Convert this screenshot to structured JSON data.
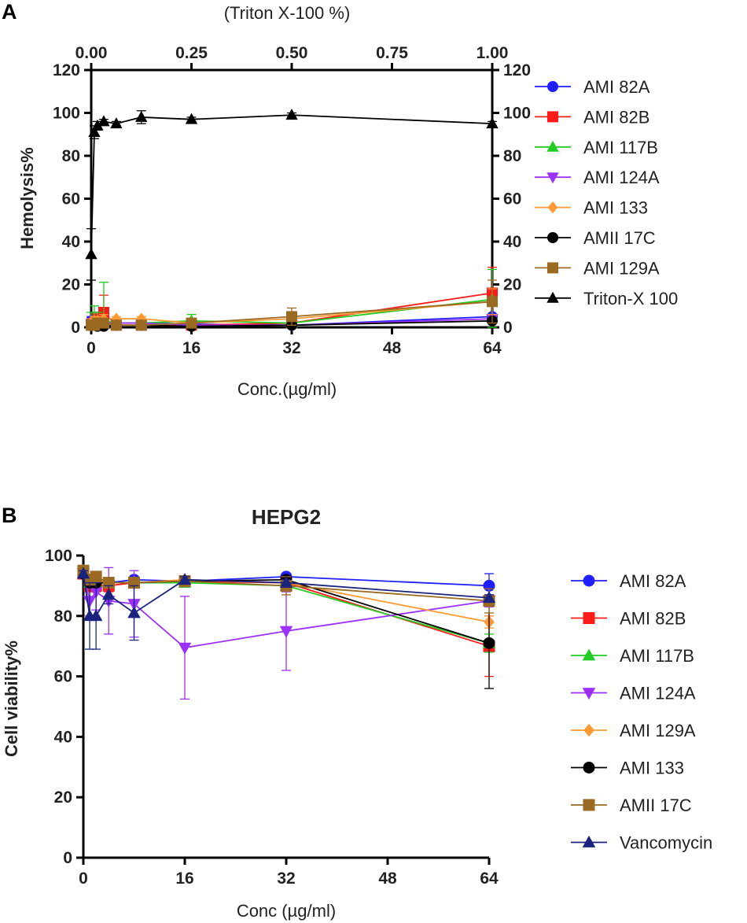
{
  "chart_data": [
    {
      "panel": "A",
      "type": "line",
      "title": "",
      "xlabel": "Conc.(µg/ml)",
      "ylabel": "Hemolysis%",
      "x2label": "(Triton X-100 %)",
      "xlim": [
        0,
        64
      ],
      "ylim": [
        0,
        120
      ],
      "x2lim": [
        0,
        1
      ],
      "xticks": [
        "0",
        "16",
        "32",
        "48",
        "64"
      ],
      "yticks": [
        "0",
        "20",
        "40",
        "60",
        "80",
        "100",
        "120"
      ],
      "x2ticks": [
        "0.00",
        "0.25",
        "0.50",
        "0.75",
        "1.00"
      ],
      "y2ticks": [
        "0",
        "20",
        "40",
        "60",
        "80",
        "100",
        "120"
      ],
      "series": [
        {
          "name": "AMI 82A",
          "color": "#1f1fff",
          "marker": "circle",
          "x": [
            0,
            0.5,
            1,
            2,
            4,
            8,
            16,
            32,
            64
          ],
          "values": [
            3,
            4,
            2,
            2,
            2,
            2,
            1.5,
            1,
            5
          ],
          "err": [
            2,
            3,
            2,
            1,
            1,
            1,
            1,
            1,
            1
          ]
        },
        {
          "name": "AMI 82B",
          "color": "#ff1a1a",
          "marker": "square",
          "x": [
            0,
            0.5,
            1,
            2,
            4,
            8,
            16,
            32,
            64
          ],
          "values": [
            1,
            2,
            4,
            7,
            1,
            1,
            1,
            2,
            16
          ],
          "err": [
            1,
            2,
            3,
            8,
            1,
            1,
            1,
            1,
            12
          ]
        },
        {
          "name": "AMI 117B",
          "color": "#22cc22",
          "marker": "triangle-up",
          "x": [
            0,
            0.5,
            1,
            2,
            4,
            8,
            16,
            32,
            64
          ],
          "values": [
            2,
            3,
            2,
            3,
            2,
            2,
            3,
            2,
            13
          ],
          "err": [
            5,
            7,
            5,
            18,
            2,
            2,
            3,
            1,
            14
          ]
        },
        {
          "name": "AMI 124A",
          "color": "#9b30ff",
          "marker": "triangle-down",
          "x": [
            0,
            0.5,
            1,
            2,
            4,
            8,
            16,
            32,
            64
          ],
          "values": [
            1,
            2,
            1,
            2,
            2,
            2,
            1,
            1,
            4
          ],
          "err": [
            1,
            1,
            1,
            1,
            1,
            1,
            1,
            1,
            2
          ]
        },
        {
          "name": "AMI 133",
          "color": "#ff9933",
          "marker": "diamond",
          "x": [
            0,
            0.5,
            1,
            2,
            4,
            8,
            16,
            32,
            64
          ],
          "values": [
            2,
            3,
            3,
            4,
            4,
            4,
            2,
            4,
            12
          ],
          "err": [
            2,
            2,
            2,
            2,
            1,
            1,
            1,
            2,
            6
          ]
        },
        {
          "name": "AMII 17C",
          "color": "#000000",
          "marker": "circle",
          "x": [
            0,
            0.5,
            1,
            2,
            4,
            8,
            16,
            32,
            64
          ],
          "values": [
            1,
            1,
            0.5,
            0.5,
            1,
            1,
            0.5,
            1,
            3
          ],
          "err": [
            1,
            1,
            1,
            1,
            1,
            1,
            1,
            1,
            1
          ]
        },
        {
          "name": "AMI 129A",
          "color": "#9a6a22",
          "marker": "square",
          "x": [
            0,
            0.5,
            1,
            2,
            4,
            8,
            16,
            32,
            64
          ],
          "values": [
            1,
            1,
            2,
            2,
            1,
            1,
            2,
            5,
            12
          ],
          "err": [
            1,
            1,
            1,
            1,
            1,
            1,
            1,
            4,
            10
          ]
        },
        {
          "name": "Triton-X 100",
          "color": "#000000",
          "marker": "triangle-up",
          "axis": "top",
          "x2": [
            0,
            0.0078,
            0.0156,
            0.03125,
            0.0625,
            0.125,
            0.25,
            0.5,
            1.0
          ],
          "values": [
            34,
            91,
            94,
            96,
            95,
            98,
            97,
            99,
            95
          ],
          "err": [
            12,
            3,
            2,
            1,
            1,
            3,
            1,
            1,
            1
          ]
        }
      ]
    },
    {
      "panel": "B",
      "type": "line",
      "title": "HEPG2",
      "xlabel": "Conc (µg/ml)",
      "ylabel": "Cell viability%",
      "xlim": [
        0,
        64
      ],
      "ylim": [
        0,
        100
      ],
      "xticks": [
        "0",
        "16",
        "32",
        "48",
        "64"
      ],
      "yticks": [
        "0",
        "20",
        "40",
        "60",
        "80",
        "100"
      ],
      "series": [
        {
          "name": "AMI 82A",
          "color": "#1f1fff",
          "marker": "circle",
          "x": [
            0,
            1,
            2,
            4,
            8,
            16,
            32,
            64
          ],
          "values": [
            94,
            92,
            92,
            91,
            92,
            91.5,
            93,
            90
          ],
          "err": [
            1,
            1,
            1,
            1,
            1,
            1,
            1,
            4
          ]
        },
        {
          "name": "AMI 82B",
          "color": "#ff1a1a",
          "marker": "square",
          "x": [
            0,
            1,
            2,
            4,
            8,
            16,
            32,
            64
          ],
          "values": [
            94,
            90,
            90,
            90,
            91,
            91.5,
            91,
            70
          ],
          "err": [
            1,
            2,
            2,
            2,
            1,
            1,
            1,
            10
          ]
        },
        {
          "name": "AMI 117B",
          "color": "#22cc22",
          "marker": "triangle-up",
          "x": [
            0,
            1,
            2,
            4,
            8,
            16,
            32,
            64
          ],
          "values": [
            95,
            91,
            91,
            91,
            91,
            91,
            90,
            71
          ],
          "err": [
            1,
            1,
            1,
            1,
            1,
            1,
            1,
            3
          ]
        },
        {
          "name": "AMI 124A",
          "color": "#9b30ff",
          "marker": "triangle-down",
          "x": [
            0,
            1,
            2,
            4,
            8,
            16,
            32,
            64
          ],
          "values": [
            94,
            85,
            88,
            85,
            84,
            69.5,
            75,
            85
          ],
          "err": [
            1,
            5,
            6,
            11,
            11,
            17,
            13,
            2
          ]
        },
        {
          "name": "AMI 129A",
          "color": "#ff9933",
          "marker": "diamond",
          "x": [
            0,
            1,
            2,
            4,
            8,
            16,
            32,
            64
          ],
          "values": [
            95,
            91,
            92,
            91,
            91,
            92,
            91,
            78
          ],
          "err": [
            1,
            1,
            1,
            1,
            1,
            1,
            1,
            2
          ]
        },
        {
          "name": "AMI 133",
          "color": "#000000",
          "marker": "circle",
          "x": [
            0,
            1,
            2,
            4,
            8,
            16,
            32,
            64
          ],
          "values": [
            94,
            91,
            91,
            91,
            91,
            91.5,
            92,
            71
          ],
          "err": [
            1,
            1,
            1,
            1,
            1,
            1,
            1,
            15
          ]
        },
        {
          "name": "AMII 17C",
          "color": "#9a6a22",
          "marker": "square",
          "x": [
            0,
            1,
            2,
            4,
            8,
            16,
            32,
            64
          ],
          "values": [
            95,
            92,
            93,
            91,
            91,
            91.5,
            90,
            85
          ],
          "err": [
            1,
            1,
            1,
            1,
            1,
            1,
            3,
            4
          ]
        },
        {
          "name": "Vancomycin",
          "color": "#1a237e",
          "marker": "triangle-up",
          "x": [
            0,
            1,
            2,
            4,
            8,
            16,
            32,
            64
          ],
          "values": [
            94,
            80,
            80,
            87,
            81,
            92,
            91,
            86
          ],
          "err": [
            1,
            11,
            11,
            3,
            9,
            1,
            1,
            1
          ]
        }
      ]
    }
  ]
}
